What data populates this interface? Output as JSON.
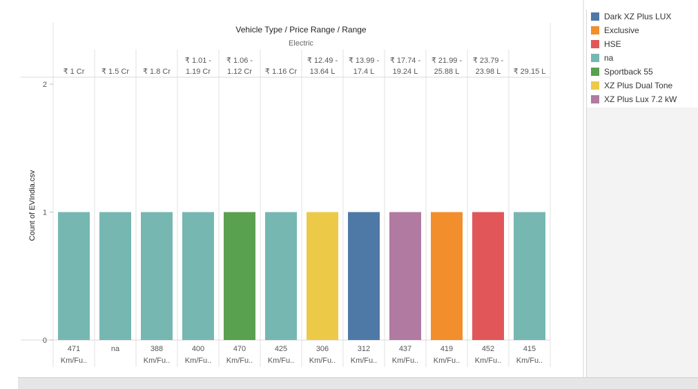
{
  "corner_text": "· · · · · ·",
  "chart_data": {
    "type": "bar",
    "header_title": "Vehicle Type / Price Range / Range",
    "header_subtitle": "Electric",
    "ylabel": "Count of EVIndia.csv",
    "ylim": [
      0,
      2
    ],
    "yticks": [
      "0",
      "1",
      "2"
    ],
    "grid": true,
    "columns": [
      {
        "price": [
          "₹ 1 Cr"
        ],
        "range": [
          "471",
          "Km/Fu.."
        ],
        "value": 1,
        "legend": "na"
      },
      {
        "price": [
          "₹ 1.5 Cr"
        ],
        "range": [
          "na"
        ],
        "value": 1,
        "legend": "na"
      },
      {
        "price": [
          "₹ 1.8 Cr"
        ],
        "range": [
          "388",
          "Km/Fu.."
        ],
        "value": 1,
        "legend": "na"
      },
      {
        "price": [
          "₹ 1.01 -",
          "1.19 Cr"
        ],
        "range": [
          "400",
          "Km/Fu.."
        ],
        "value": 1,
        "legend": "na"
      },
      {
        "price": [
          "₹ 1.06 -",
          "1.12 Cr"
        ],
        "range": [
          "470",
          "Km/Fu.."
        ],
        "value": 1,
        "legend": "Sportback 55"
      },
      {
        "price": [
          "₹ 1.16 Cr"
        ],
        "range": [
          "425",
          "Km/Fu.."
        ],
        "value": 1,
        "legend": "na"
      },
      {
        "price": [
          "₹ 12.49 -",
          "13.64 L"
        ],
        "range": [
          "306",
          "Km/Fu.."
        ],
        "value": 1,
        "legend": "XZ Plus Dual Tone"
      },
      {
        "price": [
          "₹ 13.99 -",
          "17.4 L"
        ],
        "range": [
          "312",
          "Km/Fu.."
        ],
        "value": 1,
        "legend": "Dark XZ Plus LUX"
      },
      {
        "price": [
          "₹ 17.74 -",
          "19.24 L"
        ],
        "range": [
          "437",
          "Km/Fu.."
        ],
        "value": 1,
        "legend": "XZ Plus Lux 7.2 kW"
      },
      {
        "price": [
          "₹ 21.99 -",
          "25.88 L"
        ],
        "range": [
          "419",
          "Km/Fu.."
        ],
        "value": 1,
        "legend": "Exclusive"
      },
      {
        "price": [
          "₹ 23.79 -",
          "23.98 L"
        ],
        "range": [
          "452",
          "Km/Fu.."
        ],
        "value": 1,
        "legend": "HSE"
      },
      {
        "price": [
          "₹ 29.15 L"
        ],
        "range": [
          "415",
          "Km/Fu.."
        ],
        "value": 1,
        "legend": "na"
      }
    ],
    "legend": [
      {
        "label": "Dark XZ Plus LUX",
        "color": "#4e79a7"
      },
      {
        "label": "Exclusive",
        "color": "#f28e2b"
      },
      {
        "label": "HSE",
        "color": "#e15759"
      },
      {
        "label": "na",
        "color": "#76b7b2"
      },
      {
        "label": "Sportback 55",
        "color": "#59a14f"
      },
      {
        "label": "XZ Plus Dual Tone",
        "color": "#edc948"
      },
      {
        "label": "XZ Plus Lux 7.2 kW",
        "color": "#b07aa1"
      }
    ]
  }
}
